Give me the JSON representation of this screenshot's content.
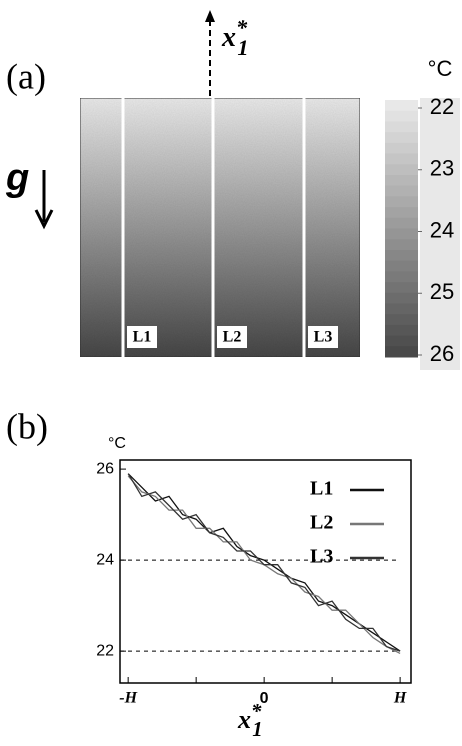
{
  "chart_data": [
    {
      "type": "heatmap",
      "panel_label": "(a)",
      "unit": "°C",
      "top_value": 22,
      "bottom_value": 26,
      "clim": [
        22,
        26
      ],
      "cticks": [
        22,
        23,
        24,
        25,
        26
      ],
      "line_labels": [
        "L1",
        "L2",
        "L3"
      ],
      "gravity_label": "g",
      "xlabel": "x",
      "xlabel_sub": "1",
      "xlabel_sup": "*"
    },
    {
      "type": "line",
      "panel_label": "(b)",
      "unit": "°C",
      "x": [
        -1,
        -0.9,
        -0.8,
        -0.7,
        -0.6,
        -0.5,
        -0.4,
        -0.3,
        -0.2,
        -0.1,
        0,
        0.1,
        0.2,
        0.3,
        0.4,
        0.5,
        0.6,
        0.7,
        0.8,
        0.9,
        1
      ],
      "series": [
        {
          "name": "L1",
          "color": "#111111",
          "values": [
            25.9,
            25.6,
            25.3,
            25.4,
            25.0,
            24.9,
            24.6,
            24.7,
            24.3,
            24.1,
            24.0,
            23.8,
            23.6,
            23.5,
            23.1,
            23.0,
            22.8,
            22.6,
            22.4,
            22.2,
            22.0
          ]
        },
        {
          "name": "L2",
          "color": "#777777",
          "values": [
            25.85,
            25.5,
            25.4,
            25.1,
            25.1,
            24.7,
            24.7,
            24.4,
            24.4,
            24.0,
            23.9,
            23.7,
            23.6,
            23.3,
            23.2,
            22.9,
            22.9,
            22.6,
            22.3,
            22.1,
            21.95
          ]
        },
        {
          "name": "L3",
          "color": "#333333",
          "values": [
            25.9,
            25.4,
            25.5,
            25.2,
            24.9,
            25.0,
            24.6,
            24.5,
            24.2,
            24.2,
            23.9,
            23.9,
            23.5,
            23.4,
            23.0,
            23.1,
            22.7,
            22.5,
            22.5,
            22.1,
            22.0
          ]
        }
      ],
      "xlim": [
        -1.06,
        1.08
      ],
      "ylim": [
        21.3,
        26.2
      ],
      "xticks": [
        {
          "value": -1,
          "label": "-H"
        },
        0,
        {
          "value": 1,
          "label": "H"
        }
      ],
      "minor_xticks": [
        -0.5,
        0.5
      ],
      "yticks": [
        22,
        24,
        26
      ],
      "ref_lines": [
        22,
        24
      ],
      "xlabel": "x",
      "xlabel_sub": "1",
      "xlabel_sup": "*"
    }
  ]
}
